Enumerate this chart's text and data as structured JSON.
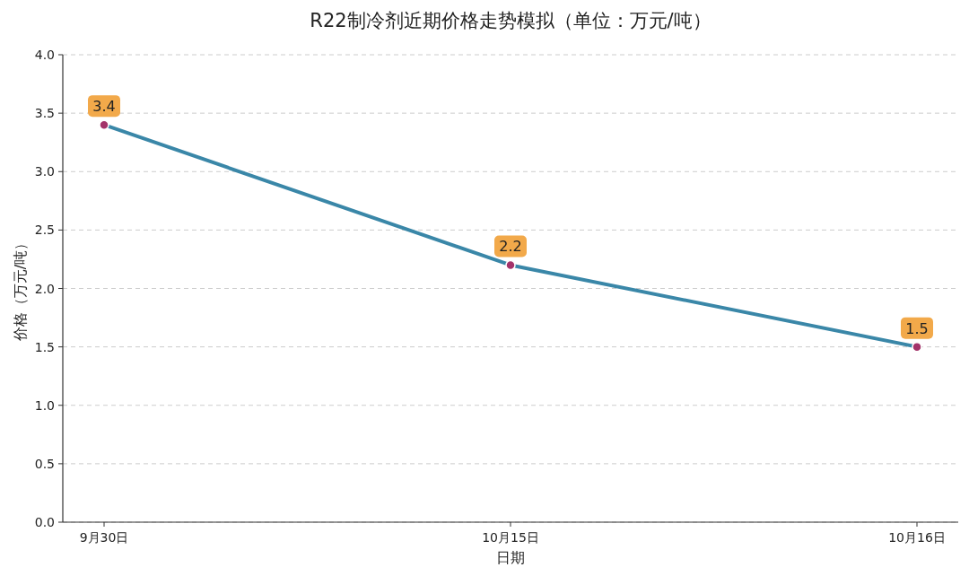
{
  "chart_data": {
    "type": "line",
    "title": "R22制冷剂近期价格走势模拟（单位：万元/吨）",
    "xlabel": "日期",
    "ylabel": "价格（万元/吨）",
    "categories": [
      "9月30日",
      "10月15日",
      "10月16日"
    ],
    "series": [
      {
        "color": "#3a87a8",
        "values": [
          3.4,
          2.2,
          1.5
        ]
      }
    ],
    "ylim": [
      0,
      4
    ],
    "yticks": [
      {
        "value": 0,
        "label": "0.0"
      },
      {
        "value": 0.5,
        "label": "0.5"
      },
      {
        "value": 1,
        "label": "1.0"
      },
      {
        "value": 1.5,
        "label": "1.5"
      },
      {
        "value": 2,
        "label": "2.0"
      },
      {
        "value": 2.5,
        "label": "2.5"
      },
      {
        "value": 3,
        "label": "3.0"
      },
      {
        "value": 3.5,
        "label": "3.5"
      },
      {
        "value": 4,
        "label": "4.0"
      }
    ],
    "grid": "y",
    "marker": "circle",
    "line_style": "solid",
    "data_labels": true
  }
}
